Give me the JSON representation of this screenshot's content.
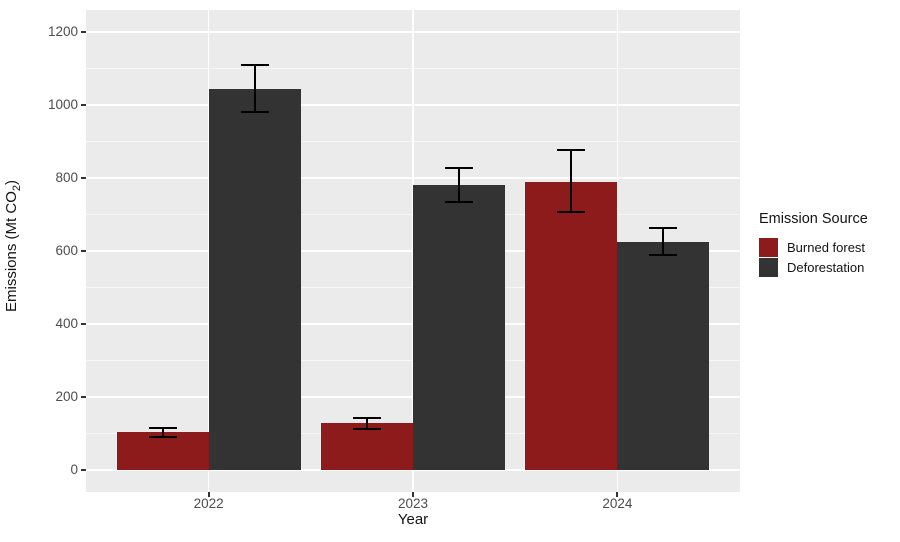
{
  "chart_data": {
    "type": "bar",
    "title": "",
    "xlabel": "Year",
    "ylabel": "Emissions (Mt CO2)",
    "ylabel_parts": {
      "prefix": "Emissions (Mt CO",
      "sub": "2",
      "suffix": ")"
    },
    "categories": [
      "2022",
      "2023",
      "2024"
    ],
    "series": [
      {
        "name": "Burned forest",
        "color": "#8E1B1B",
        "values": [
          104,
          130,
          790
        ],
        "error_lower": [
          90,
          113,
          707
        ],
        "error_upper": [
          115,
          142,
          877
        ]
      },
      {
        "name": "Deforestation",
        "color": "#333333",
        "values": [
          1045,
          780,
          626
        ],
        "error_lower": [
          980,
          735,
          590
        ],
        "error_upper": [
          1110,
          828,
          664
        ]
      }
    ],
    "ylim": [
      0,
      1200
    ],
    "y_major_ticks": [
      0,
      200,
      400,
      600,
      800,
      1000,
      1200
    ],
    "y_minor_ticks": [
      100,
      300,
      500,
      700,
      900,
      1100
    ],
    "y_expansion": 60,
    "grid": true,
    "legend": {
      "title": "Emission Source",
      "position": "right"
    },
    "colors": {
      "panel_bg": "#EBEBEB",
      "grid_major": "#FFFFFF",
      "grid_minor": "#FFFFFF",
      "tick_text": "#4D4D4D",
      "title_text": "#141414",
      "error_bar": "#000000",
      "tick_mark": "#333333"
    }
  }
}
